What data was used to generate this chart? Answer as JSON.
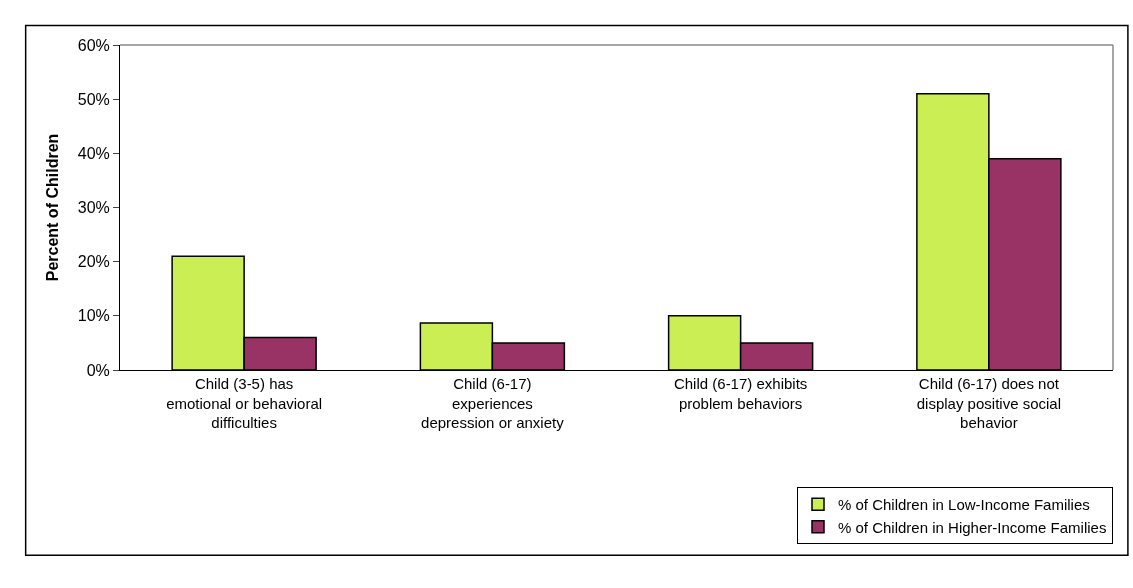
{
  "chart_data": {
    "type": "bar",
    "ylabel": "Percent of Children",
    "categories": [
      "Child (3-5) has\nemotional or behavioral\ndifficulties",
      "Child (6-17)\nexperiences\ndepression or anxiety",
      "Child (6-17) exhibits\nproblem behaviors",
      "Child (6-17) does not\ndisplay positive social\nbehavior"
    ],
    "series": [
      {
        "name": "% of Children in Low-Income Families",
        "color": "#ccee55",
        "values": [
          21,
          8.7,
          10,
          51
        ]
      },
      {
        "name": "% of Children in Higher-Income Families",
        "color": "#993366",
        "values": [
          6,
          5,
          5,
          39
        ]
      }
    ],
    "ylim": [
      0,
      60
    ],
    "yticks": [
      {
        "value": 0,
        "label": "0%"
      },
      {
        "value": 10,
        "label": "10%"
      },
      {
        "value": 20,
        "label": "20%"
      },
      {
        "value": 30,
        "label": "30%"
      },
      {
        "value": 40,
        "label": "40%"
      },
      {
        "value": 50,
        "label": "50%"
      },
      {
        "value": 60,
        "label": "60%"
      }
    ],
    "grid": false,
    "legend": "bottom right"
  }
}
